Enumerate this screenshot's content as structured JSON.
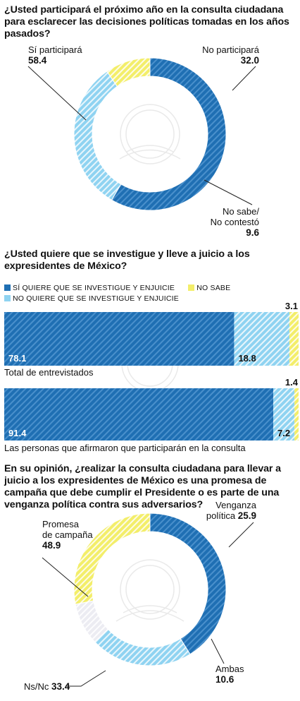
{
  "colors": {
    "dark_blue": "#1f6fb3",
    "light_blue": "#8fd3f1",
    "yellow": "#f3ee6a",
    "gray": "#ececf2"
  },
  "chart_data": [
    {
      "type": "pie",
      "title": "¿Usted participará el próximo año en la consulta ciudadana para esclarecer las decisiones políticas tomadas en los años pasados?",
      "slices": [
        {
          "label": "Sí participará",
          "value": 58.4,
          "color": "#1f6fb3"
        },
        {
          "label": "No participará",
          "value": 32.0,
          "color": "#8fd3f1"
        },
        {
          "label": "No sabe/ No contestó",
          "value": 9.6,
          "color": "#f3ee6a"
        }
      ]
    },
    {
      "type": "bar",
      "orientation": "horizontal-stacked",
      "title": "¿Usted quiere que se investigue y lleve a juicio a los expresidentes de México?",
      "legend": [
        {
          "label": "SÍ QUIERE QUE SE INVESTIGUE Y ENJUICIE",
          "color": "#1f6fb3"
        },
        {
          "label": "NO SABE",
          "color": "#f3ee6a"
        },
        {
          "label": "NO QUIERE QUE SE INVESTIGUE Y ENJUICIE",
          "color": "#8fd3f1"
        }
      ],
      "categories": [
        "Total de entrevistados",
        "Las personas que afirmaron que participarán en la consulta"
      ],
      "series": [
        {
          "name": "SÍ QUIERE QUE SE INVESTIGUE Y ENJUICIE",
          "values": [
            78.1,
            91.4
          ]
        },
        {
          "name": "NO QUIERE QUE SE INVESTIGUE Y ENJUICIE",
          "values": [
            18.8,
            7.2
          ]
        },
        {
          "name": "NO SABE",
          "values": [
            3.1,
            1.4
          ]
        }
      ],
      "labels": {
        "yes": [
          "78.1",
          "91.4"
        ],
        "no": [
          "18.8",
          "7.2"
        ],
        "dk": [
          "3.1",
          "1.4"
        ]
      }
    },
    {
      "type": "pie",
      "title": "En su opinión, ¿realizar la consulta ciudadana para llevar a juicio a los expresidentes de México es una promesa de campaña que debe cumplir el Presidente o es parte de una venganza política contra sus adversarios?",
      "slices": [
        {
          "label": "Promesa de campaña",
          "value": 48.9,
          "color": "#1f6fb3"
        },
        {
          "label": "Venganza política",
          "value": 25.9,
          "color": "#8fd3f1"
        },
        {
          "label": "Ambas",
          "value": 10.6,
          "color": "#ececf2"
        },
        {
          "label": "Ns/Nc",
          "value": 33.4,
          "color": "#f3ee6a"
        }
      ]
    }
  ],
  "q1": {
    "title": "¿Usted participará el próximo año en la consulta ciudadana para esclarecer las decisiones políticas tomadas en los años pasados?",
    "si_label": "Sí participará",
    "si_value": "58.4",
    "no_label": "No participará",
    "no_value": "32.0",
    "ns_label1": "No sabe/",
    "ns_label2": "No contestó",
    "ns_value": "9.6"
  },
  "q2": {
    "title": "¿Usted quiere que se investigue y lleve a juicio a los expresidentes de México?",
    "legend_yes": "SÍ QUIERE QUE SE INVESTIGUE Y ENJUICIE",
    "legend_dk": "NO SABE",
    "legend_no": "NO QUIERE QUE SE INVESTIGUE Y ENJUICIE",
    "cap1": "Total de entrevistados",
    "cap2": "Las personas que afirmaron que participarán en la consulta"
  },
  "q3": {
    "title": "En su opinión, ¿realizar la consulta ciudadana para llevar a juicio a los expresidentes de México es una promesa de campaña que debe cumplir el Presidente o es parte de una venganza política contra sus adversarios?",
    "promesa_label1": "Promesa",
    "promesa_label2": "de campaña",
    "promesa_value": "48.9",
    "venganza_label1": "Venganza",
    "venganza_label2": "política",
    "venganza_value": "25.9",
    "ambas_label": "Ambas",
    "ambas_value": "10.6",
    "nsnc_label": "Ns/Nc",
    "nsnc_value": "33.4"
  }
}
